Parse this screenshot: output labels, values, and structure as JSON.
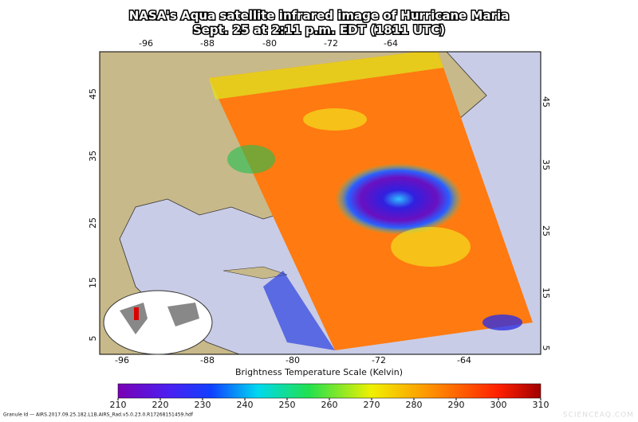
{
  "title": [
    "NASA's Aqua satellite infrared image of Hurricane Maria",
    "Sept. 25 at 2:11 p.m. EDT (1811 UTC)"
  ],
  "top_longitudes": [
    "-96",
    "-88",
    "-80",
    "-72",
    "-64"
  ],
  "bottom_longitudes": [
    "-96",
    "-88",
    "-80",
    "-72",
    "-64"
  ],
  "left_latitudes": [
    "45",
    "35",
    "25",
    "15",
    "5"
  ],
  "right_latitudes": [
    "45",
    "35",
    "25",
    "15",
    "5"
  ],
  "colorbar": {
    "label": "Brightness Temperature Scale (Kelvin)",
    "ticks": [
      210,
      220,
      230,
      240,
      250,
      260,
      270,
      280,
      290,
      300,
      310
    ]
  },
  "granule": "Granule Id — AIRS.2017.09.25.182.L1B.AIRS_Rad.v5.0.23.0.R17268151459.hdf",
  "watermark": "SCIENCEAQ.COM"
}
